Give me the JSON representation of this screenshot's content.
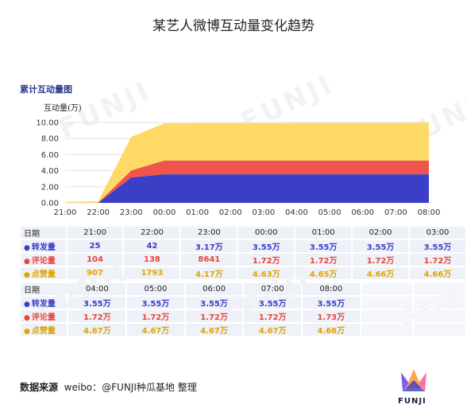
{
  "header": {
    "title": "某艺人微博互动量变化趋势"
  },
  "chart_data": {
    "type": "area",
    "title": "累计互动量图",
    "ylabel": "互动量(万)",
    "ylim": [
      0,
      10
    ],
    "yticks": [
      "0.00",
      "2.00",
      "4.00",
      "6.00",
      "8.00",
      "10.00"
    ],
    "x": [
      "21:00",
      "22:00",
      "23:00",
      "00:00",
      "01:00",
      "02:00",
      "03:00",
      "04:00",
      "05:00",
      "06:00",
      "07:00",
      "08:00"
    ],
    "stacked": true,
    "series": [
      {
        "name": "转发量",
        "color": "#3a3fc6",
        "values": [
          0.0025,
          0.0042,
          3.17,
          3.55,
          3.55,
          3.55,
          3.55,
          3.55,
          3.55,
          3.55,
          3.55,
          3.55
        ]
      },
      {
        "name": "评论量",
        "color": "#f0544a",
        "values": [
          0.0104,
          0.0138,
          0.8641,
          1.72,
          1.72,
          1.72,
          1.72,
          1.72,
          1.72,
          1.72,
          1.72,
          1.73
        ]
      },
      {
        "name": "点赞量",
        "color": "#ffd966",
        "values": [
          0.0907,
          0.1793,
          4.17,
          4.63,
          4.65,
          4.66,
          4.66,
          4.67,
          4.67,
          4.67,
          4.67,
          4.68
        ]
      }
    ]
  },
  "table": {
    "header_label": "日期",
    "row_labels": [
      "转发量",
      "评论量",
      "点赞量"
    ],
    "block1": {
      "dates": [
        "21:00",
        "22:00",
        "23:00",
        "00:00",
        "01:00",
        "02:00",
        "03:00"
      ],
      "repost": [
        "25",
        "42",
        "3.17万",
        "3.55万",
        "3.55万",
        "3.55万",
        "3.55万"
      ],
      "comment": [
        "104",
        "138",
        "8641",
        "1.72万",
        "1.72万",
        "1.72万",
        "1.72万"
      ],
      "like": [
        "907",
        "1793",
        "4.17万",
        "4.63万",
        "4.65万",
        "4.66万",
        "4.66万"
      ]
    },
    "block2": {
      "dates": [
        "04:00",
        "05:00",
        "06:00",
        "07:00",
        "08:00"
      ],
      "repost": [
        "3.55万",
        "3.55万",
        "3.55万",
        "3.55万",
        "3.55万"
      ],
      "comment": [
        "1.72万",
        "1.72万",
        "1.72万",
        "1.72万",
        "1.73万"
      ],
      "like": [
        "4.67万",
        "4.67万",
        "4.67万",
        "4.67万",
        "4.68万"
      ]
    }
  },
  "footer": {
    "label": "数据来源",
    "source": "weibo：@FUNJI种瓜基地 整理"
  },
  "logo": {
    "text": "FUNJI",
    "icon": "funji-crown-icon"
  },
  "watermark": "FUNJI"
}
